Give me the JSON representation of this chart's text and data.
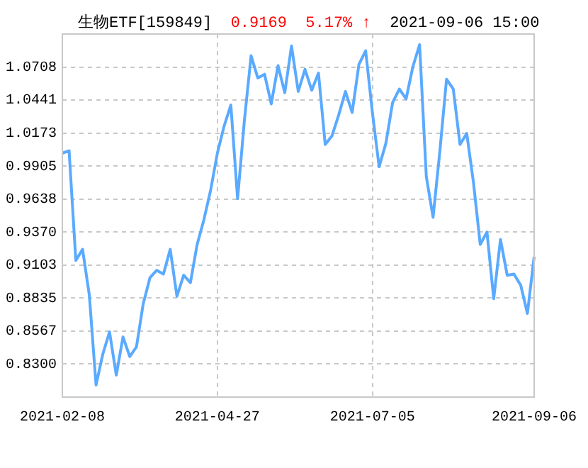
{
  "chart_data": {
    "type": "line",
    "title": "生物ETF[159849]",
    "annotations": [
      "0.9169",
      "5.17% ↑",
      "2021-09-06 15:00"
    ],
    "categories": [
      "2021-02-08",
      null,
      null,
      null,
      null,
      null,
      null,
      null,
      null,
      null,
      null,
      null,
      null,
      null,
      null,
      null,
      null,
      null,
      null,
      null,
      null,
      null,
      null,
      "2021-04-27",
      null,
      null,
      null,
      null,
      null,
      null,
      null,
      null,
      null,
      null,
      null,
      null,
      null,
      null,
      null,
      null,
      null,
      null,
      null,
      null,
      null,
      null,
      "2021-07-05",
      null,
      null,
      null,
      null,
      null,
      null,
      null,
      null,
      null,
      null,
      null,
      null,
      null,
      null,
      null,
      null,
      null,
      null,
      null,
      null,
      null,
      null,
      null,
      "2021-09-06"
    ],
    "series": [
      {
        "color": "#5aaaff",
        "values": [
          1.001,
          1.003,
          0.914,
          0.923,
          0.886,
          0.813,
          0.838,
          0.856,
          0.821,
          0.852,
          0.836,
          0.844,
          0.879,
          0.9,
          0.906,
          0.903,
          0.923,
          0.885,
          0.902,
          0.896,
          0.927,
          0.947,
          0.971,
          1.001,
          1.023,
          1.04,
          0.964,
          1.027,
          1.08,
          1.062,
          1.065,
          1.041,
          1.072,
          1.05,
          1.088,
          1.051,
          1.069,
          1.052,
          1.066,
          1.008,
          1.015,
          1.032,
          1.051,
          1.034,
          1.073,
          1.084,
          1.034,
          0.99,
          1.009,
          1.042,
          1.053,
          1.045,
          1.071,
          1.089,
          0.982,
          0.949,
          1.002,
          1.061,
          1.053,
          1.008,
          1.017,
          0.977,
          0.927,
          0.937,
          0.883,
          0.931,
          0.902,
          0.903,
          0.894,
          0.871,
          0.917
        ]
      }
    ],
    "ylim": [
      0.8032,
      1.0976
    ],
    "yticks": [
      {
        "value": 0.83,
        "label": "0.8300"
      },
      0.8567,
      0.8835,
      0.9103,
      {
        "value": 0.937,
        "label": "0.9370"
      },
      0.9638,
      0.9905,
      1.0173,
      1.0441,
      1.0708
    ],
    "grid": true,
    "marker": "none",
    "line_style": "solid"
  }
}
